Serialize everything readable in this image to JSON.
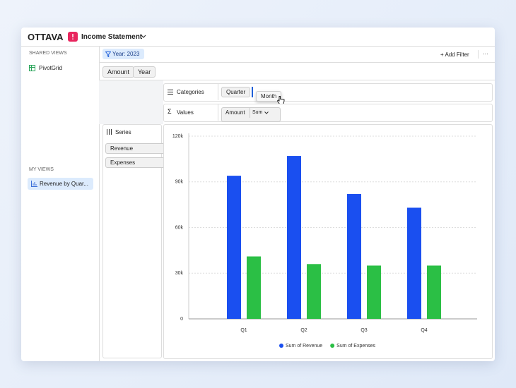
{
  "app": {
    "brand": "OTTAVA",
    "report": "Income Statement"
  },
  "sidebar": {
    "shared_heading": "SHARED VIEWS",
    "shared_items": [
      "PivotGrid"
    ],
    "my_heading": "MY VIEWS",
    "my_items": [
      "Revenue by Quar..."
    ]
  },
  "toolbar": {
    "filter": "Year: 2023",
    "add_filter": "+ Add Filter",
    "more": "···"
  },
  "fields": [
    "Amount",
    "Year"
  ],
  "categories_zone": {
    "label": "Categories",
    "chips": [
      "Quarter"
    ],
    "drag_chip": "Month"
  },
  "values_zone": {
    "icon": "Σ",
    "label": "Values",
    "chip": "Amount",
    "aggregate": "Sum"
  },
  "series_zone": {
    "label": "Series",
    "chips": [
      "Revenue",
      "Expenses"
    ]
  },
  "chart_data": {
    "type": "bar",
    "categories": [
      "Q1",
      "Q2",
      "Q3",
      "Q4"
    ],
    "series": [
      {
        "name": "Sum of Revenue",
        "color": "#1a4ff0",
        "values": [
          94000,
          107000,
          82000,
          73000
        ]
      },
      {
        "name": "Sum of Expenses",
        "color": "#2bbf45",
        "values": [
          41000,
          36000,
          35000,
          35000
        ]
      }
    ],
    "ylim": [
      0,
      120000
    ],
    "yticks": [
      {
        "value": 0,
        "label": "0"
      },
      {
        "value": 30000,
        "label": "30k"
      },
      {
        "value": 60000,
        "label": "60k"
      },
      {
        "value": 90000,
        "label": "90k"
      },
      {
        "value": 120000,
        "label": "120k"
      }
    ],
    "grid": true
  }
}
